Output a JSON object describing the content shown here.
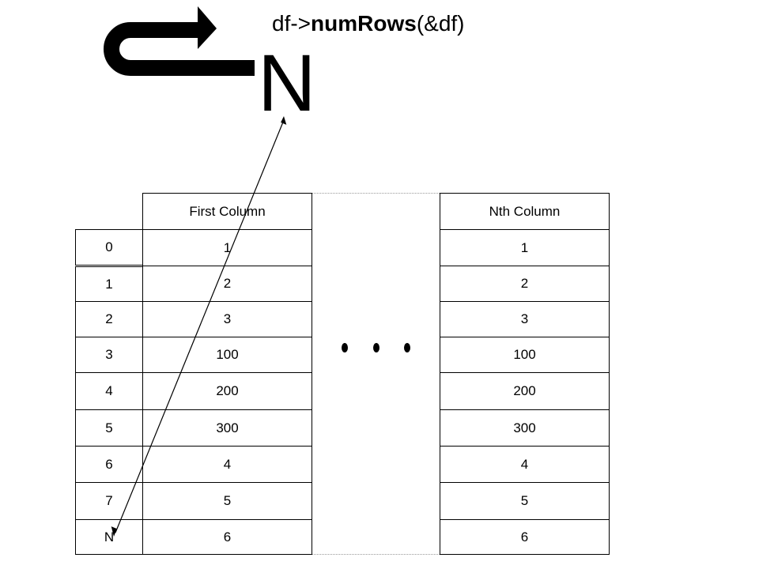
{
  "title": {
    "prefix": "df->",
    "method": "numRows",
    "suffix": "(&df)"
  },
  "result_label": "N",
  "index_column": {
    "values": [
      "0",
      "1",
      "2",
      "3",
      "4",
      "5",
      "6",
      "7",
      "N"
    ]
  },
  "first_column": {
    "header": "First Column",
    "values": [
      "1",
      "2",
      "3",
      "100",
      "200",
      "300",
      "4",
      "5",
      "6"
    ]
  },
  "nth_column": {
    "header": "Nth Column",
    "values": [
      "1",
      "2",
      "3",
      "100",
      "200",
      "300",
      "4",
      "5",
      "6"
    ]
  },
  "icons": {
    "return_arrow": "u-turn-arrow-icon",
    "ellipsis": "horizontal-ellipsis-icon",
    "pointer": "double-headed-arrow-icon"
  }
}
